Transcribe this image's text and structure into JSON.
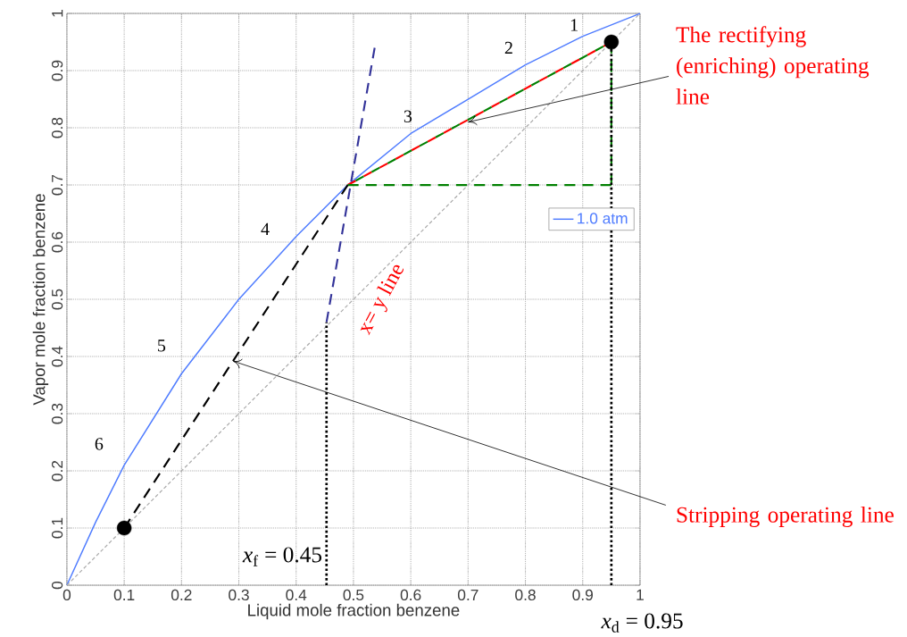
{
  "chart_data": {
    "type": "line",
    "xlabel": "Liquid mole fraction benzene",
    "ylabel": "Vapor mole fraction benzene",
    "xlim": [
      0,
      1
    ],
    "ylim": [
      0,
      1
    ],
    "xticks": [
      0,
      0.1,
      0.2,
      0.3,
      0.4,
      0.5,
      0.6,
      0.7,
      0.8,
      0.9,
      1
    ],
    "yticks": [
      0,
      0.1,
      0.2,
      0.3,
      0.4,
      0.5,
      0.6,
      0.7,
      0.8,
      0.9,
      1
    ],
    "grid": true,
    "legend": "right",
    "series": [
      {
        "name": "1.0 atm",
        "color": "#4f7cff",
        "line_style": "solid",
        "x": [
          0,
          0.05,
          0.1,
          0.2,
          0.3,
          0.4,
          0.49,
          0.6,
          0.7,
          0.8,
          0.9,
          1
        ],
        "values": [
          0,
          0.11,
          0.21,
          0.37,
          0.5,
          0.61,
          0.7,
          0.79,
          0.85,
          0.91,
          0.96,
          1
        ]
      },
      {
        "color": "#aaaaaa",
        "line_style": "dotted",
        "x": [
          0,
          1
        ],
        "values": [
          0,
          1
        ]
      },
      {
        "color": "#ff0000",
        "line_style": "dashed",
        "x": [
          0.49,
          0.95
        ],
        "values": [
          0.7,
          0.95
        ]
      },
      {
        "color": "#008000",
        "line_style": "dashed",
        "x": [
          0.49,
          0.95
        ],
        "values": [
          0.7,
          0.95
        ]
      },
      {
        "color": "#008000",
        "line_style": "dashed",
        "x": [
          0.49,
          0.95
        ],
        "values": [
          0.7,
          0.7
        ]
      },
      {
        "color": "#008000",
        "line_style": "dashed",
        "x": [
          0.95,
          0.95
        ],
        "values": [
          0.7,
          0.95
        ]
      },
      {
        "color": "#000000",
        "line_style": "dashed",
        "x": [
          0.1,
          0.49
        ],
        "values": [
          0.1,
          0.7
        ]
      },
      {
        "color": "#333399",
        "line_style": "dashed",
        "x": [
          0.453,
          0.537
        ],
        "values": [
          0.46,
          0.94
        ]
      },
      {
        "color": "#000000",
        "line_style": "dotted",
        "x": [
          0.453,
          0.453
        ],
        "values": [
          0,
          0.46
        ]
      },
      {
        "color": "#000000",
        "line_style": "dotted",
        "x": [
          0.95,
          0.95
        ],
        "values": [
          0,
          0.95
        ]
      },
      {
        "type": "scatter",
        "color": "#000000",
        "marker": "circle",
        "x": [
          0.1,
          0.95
        ],
        "values": [
          0.1,
          0.95
        ]
      }
    ],
    "annotations": [
      "1",
      "2",
      "3",
      "4",
      "5",
      "6",
      "x= y line",
      {
        "text": "The rectifying (enriching) operating line",
        "x": 0.7,
        "y": 0.81
      },
      {
        "text": "Stripping operating line",
        "x": 0.29,
        "y": 0.392
      },
      {
        "text": "*x*$_{f}$ = 0.45",
        "x": 0.453,
        "y": 0.05
      },
      {
        "text": "*x*$_{d}$ = 0.95",
        "x": 0.95,
        "y": 0
      }
    ]
  }
}
